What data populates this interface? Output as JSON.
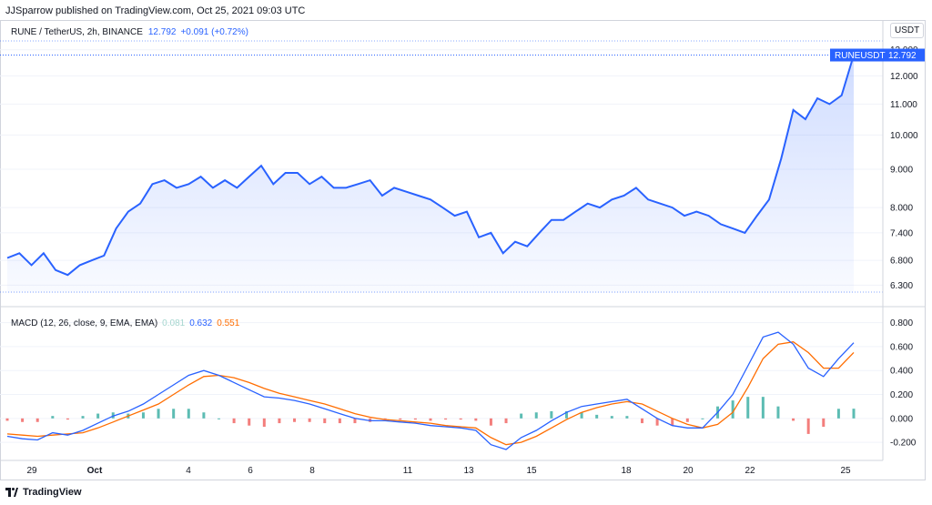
{
  "publisher_line": "JJSparrow published on TradingView.com, Oct 25, 2021 09:03 UTC",
  "currency_button": "USDT",
  "main_legend": {
    "symbol": "RUNE / TetherUS, 2h, BINANCE",
    "price": "12.792",
    "change": "+0.091 (+0.72%)"
  },
  "macd_legend": {
    "label": "MACD (12, 26, close, 9, EMA, EMA)",
    "histogram": "0.081",
    "macd": "0.632",
    "signal": "0.551"
  },
  "price_tag": {
    "symbol": "RUNEUSDT",
    "value": "12.792"
  },
  "brand": "TradingView",
  "colors": {
    "line": "#2962ff",
    "signal": "#ff6d00",
    "hist_up": "#26a69a",
    "hist_down": "#ef5350",
    "area": "#2962ff"
  },
  "chart_data": {
    "type": "area",
    "price_axis": {
      "scale": "log",
      "ticks": [
        "13.000",
        "12.000",
        "11.000",
        "10.000",
        "9.000",
        "8.000",
        "7.400",
        "6.800",
        "6.300"
      ],
      "range": [
        6.15,
        13.1
      ]
    },
    "time_axis": {
      "ticks": [
        "29",
        "Oct",
        "4",
        "6",
        "8",
        "11",
        "13",
        "15",
        "18",
        "20",
        "22",
        "25"
      ]
    },
    "series": [
      {
        "name": "RUNEUSDT",
        "x": [
          0,
          2,
          4,
          6,
          8,
          10,
          12,
          14,
          16,
          18,
          20,
          22,
          24,
          26,
          28,
          30,
          32,
          34,
          36,
          38,
          40,
          42,
          44,
          46,
          48,
          50,
          52,
          54,
          56,
          58,
          60,
          62,
          64,
          66,
          68,
          70,
          72,
          74,
          76,
          78,
          80,
          82,
          84,
          86,
          88,
          90,
          92,
          94,
          96,
          98,
          100,
          102,
          104,
          106,
          108,
          110,
          112,
          114,
          116,
          118,
          120,
          122,
          124,
          126,
          128,
          130,
          132,
          134,
          136,
          138,
          140
        ],
        "values": [
          6.85,
          6.95,
          6.7,
          6.95,
          6.6,
          6.5,
          6.7,
          6.8,
          6.9,
          7.5,
          7.9,
          8.1,
          8.6,
          8.7,
          8.5,
          8.6,
          8.8,
          8.5,
          8.7,
          8.5,
          8.8,
          9.1,
          8.6,
          8.9,
          8.9,
          8.6,
          8.8,
          8.5,
          8.5,
          8.6,
          8.7,
          8.3,
          8.5,
          8.4,
          8.3,
          8.2,
          8.0,
          7.8,
          7.9,
          7.3,
          7.4,
          6.95,
          7.2,
          7.1,
          7.4,
          7.7,
          7.7,
          7.9,
          8.1,
          8.0,
          8.2,
          8.3,
          8.5,
          8.2,
          8.1,
          8.0,
          7.8,
          7.9,
          7.8,
          7.6,
          7.5,
          7.4,
          7.8,
          8.2,
          9.3,
          10.8,
          10.5,
          11.2,
          11.0,
          11.3,
          12.792
        ]
      }
    ],
    "macd": {
      "levels": [
        "0.800",
        "0.600",
        "0.400",
        "0.200",
        "0.000",
        "-0.200"
      ],
      "range": [
        -0.26,
        0.82
      ],
      "macd_values": [
        -0.15,
        -0.17,
        -0.18,
        -0.12,
        -0.14,
        -0.1,
        -0.04,
        0.02,
        0.06,
        0.12,
        0.2,
        0.28,
        0.36,
        0.4,
        0.36,
        0.3,
        0.24,
        0.18,
        0.17,
        0.15,
        0.12,
        0.08,
        0.04,
        0.0,
        -0.02,
        -0.02,
        -0.03,
        -0.04,
        -0.06,
        -0.07,
        -0.08,
        -0.1,
        -0.22,
        -0.26,
        -0.16,
        -0.1,
        -0.02,
        0.05,
        0.1,
        0.12,
        0.14,
        0.16,
        0.08,
        0.0,
        -0.06,
        -0.08,
        -0.08,
        0.05,
        0.2,
        0.44,
        0.68,
        0.72,
        0.62,
        0.42,
        0.35,
        0.5,
        0.632
      ],
      "signal_values": [
        -0.13,
        -0.14,
        -0.15,
        -0.14,
        -0.13,
        -0.12,
        -0.08,
        -0.03,
        0.02,
        0.07,
        0.12,
        0.2,
        0.28,
        0.35,
        0.36,
        0.34,
        0.3,
        0.25,
        0.21,
        0.18,
        0.15,
        0.12,
        0.08,
        0.04,
        0.01,
        -0.01,
        -0.02,
        -0.03,
        -0.04,
        -0.06,
        -0.07,
        -0.08,
        -0.16,
        -0.22,
        -0.2,
        -0.15,
        -0.08,
        -0.01,
        0.05,
        0.09,
        0.12,
        0.14,
        0.12,
        0.06,
        0.0,
        -0.05,
        -0.08,
        -0.05,
        0.05,
        0.26,
        0.5,
        0.62,
        0.64,
        0.55,
        0.42,
        0.42,
        0.551
      ]
    }
  }
}
